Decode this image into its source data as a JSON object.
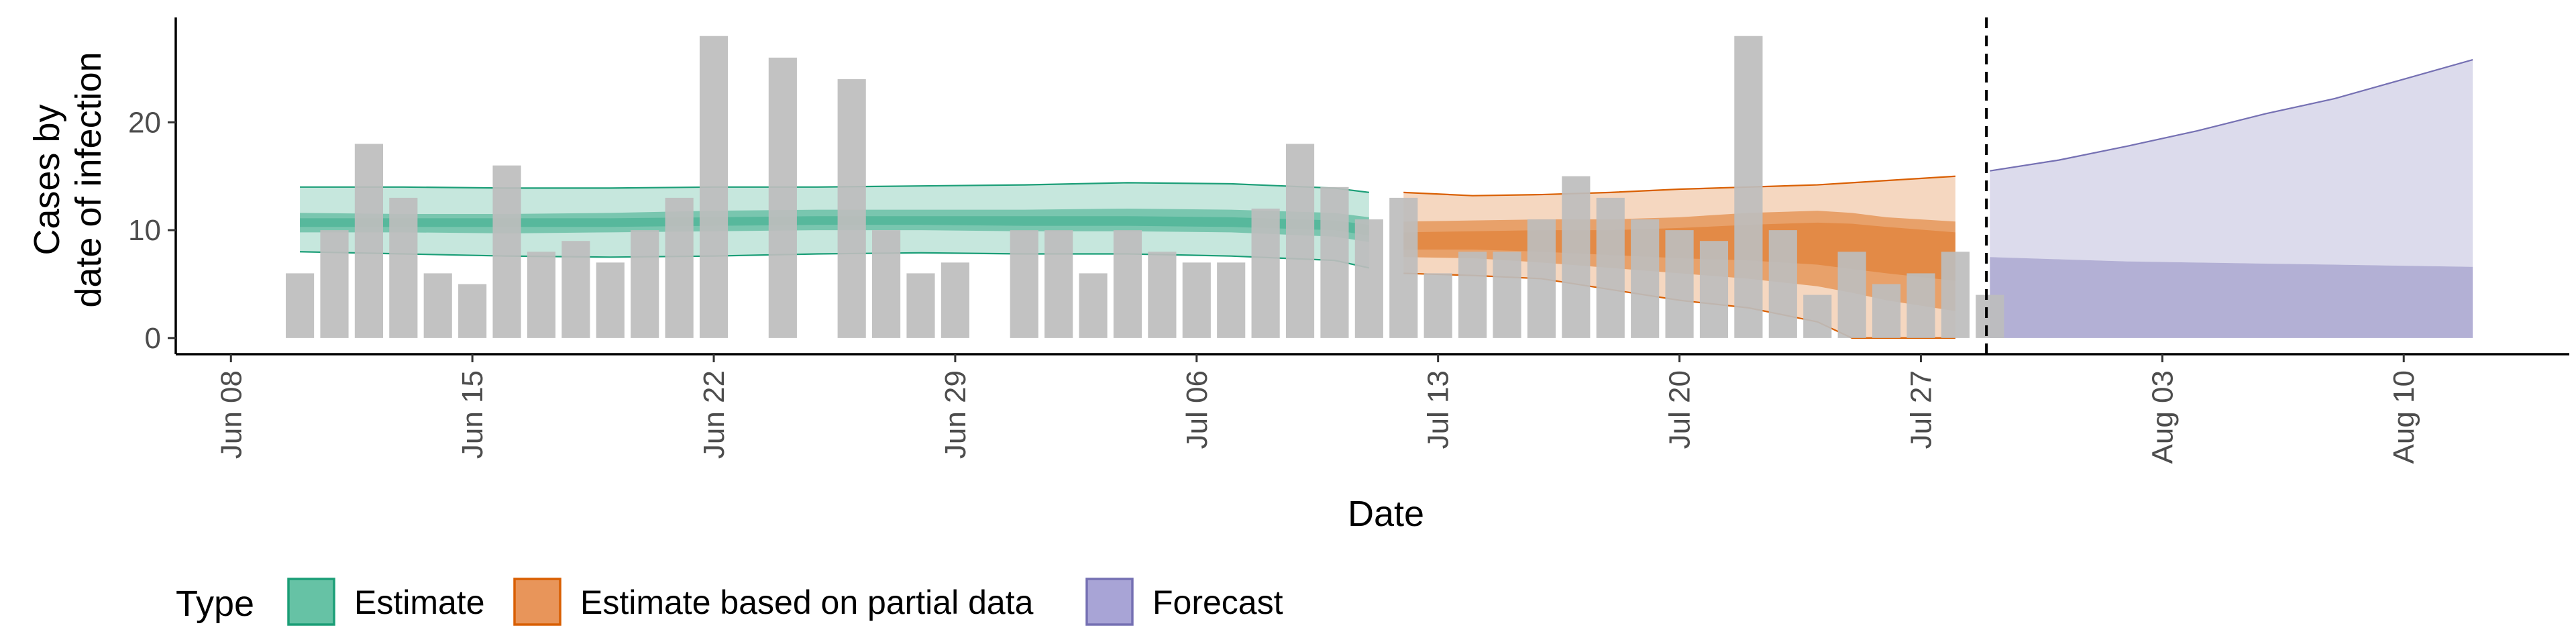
{
  "chart_data": {
    "type": "bar",
    "title": "",
    "xlabel": "Date",
    "ylabel_lines": [
      "Cases by",
      "date of infection"
    ],
    "x_ticks": [
      "Jun 08",
      "Jun 15",
      "Jun 22",
      "Jun 29",
      "Jul 06",
      "Jul 13",
      "Jul 20",
      "Jul 27",
      "Aug 03",
      "Aug 10"
    ],
    "x_tick_days": [
      0,
      7,
      14,
      21,
      28,
      35,
      42,
      49,
      56,
      63
    ],
    "x_day_zero": "Jun 08",
    "xlim_days": [
      -1.6,
      67.8
    ],
    "y_ticks": [
      0,
      10,
      20
    ],
    "ylim": [
      -1.5,
      29.6
    ],
    "forecast_date_day": 50.9,
    "legend": {
      "title": "Type",
      "position": "bottom",
      "entries": [
        {
          "label": "Estimate",
          "fill": "#66c2a5",
          "stroke": "#1b9e77"
        },
        {
          "label": "Estimate based on partial data",
          "fill": "#e8955a",
          "stroke": "#d95f02"
        },
        {
          "label": "Forecast",
          "fill": "#a8a4d6",
          "stroke": "#7570b3"
        }
      ]
    },
    "colors": {
      "bars": "#bdbdbd",
      "estimate": "#1b9e77",
      "partial": "#d95f02",
      "forecast": "#7570b3",
      "axis": "#000000"
    },
    "observed_cases": {
      "days": [
        2,
        3,
        4,
        5,
        6,
        7,
        8,
        9,
        10,
        11,
        12,
        13,
        14,
        15,
        16,
        17,
        18,
        19,
        20,
        21,
        22,
        23,
        24,
        25,
        26,
        27,
        28,
        29,
        30,
        31,
        32,
        33,
        34,
        35,
        36,
        37,
        38,
        39,
        40,
        41,
        42,
        43,
        44,
        45,
        46,
        47,
        48,
        49,
        50,
        51
      ],
      "values": [
        6,
        10,
        18,
        13,
        6,
        5,
        16,
        8,
        9,
        7,
        10,
        13,
        28,
        0,
        26,
        0,
        24,
        10,
        6,
        7,
        0,
        10,
        10,
        6,
        10,
        8,
        7,
        7,
        12,
        18,
        14,
        11,
        13,
        6,
        8,
        8,
        11,
        15,
        13,
        11,
        10,
        9,
        28,
        10,
        4,
        8,
        5,
        6,
        8,
        4
      ]
    },
    "series": [
      {
        "name": "Estimate",
        "x": [
          2,
          5,
          8,
          11,
          14,
          17,
          20,
          23,
          26,
          29,
          32,
          33
        ],
        "lower90": [
          8.0,
          7.8,
          7.6,
          7.5,
          7.6,
          7.8,
          7.9,
          7.8,
          7.8,
          7.6,
          7.2,
          6.5
        ],
        "upper90": [
          14.0,
          14.0,
          13.9,
          13.9,
          14.0,
          14.0,
          14.1,
          14.2,
          14.4,
          14.3,
          13.9,
          13.5
        ],
        "lower50": [
          9.8,
          9.8,
          9.7,
          9.8,
          9.9,
          10.0,
          10.0,
          9.9,
          9.9,
          9.8,
          9.4,
          8.9
        ],
        "upper50": [
          11.6,
          11.5,
          11.5,
          11.6,
          11.8,
          11.9,
          11.9,
          11.9,
          12.0,
          11.9,
          11.6,
          11.2
        ],
        "lower20": [
          10.3,
          10.3,
          10.3,
          10.3,
          10.4,
          10.5,
          10.5,
          10.4,
          10.4,
          10.3,
          10.0,
          9.5
        ],
        "upper20": [
          11.1,
          11.1,
          11.1,
          11.1,
          11.2,
          11.3,
          11.3,
          11.3,
          11.3,
          11.2,
          10.9,
          10.5
        ]
      },
      {
        "name": "Estimate based on partial data",
        "x": [
          34,
          36,
          38,
          40,
          42,
          44,
          46,
          47,
          48,
          50
        ],
        "lower90": [
          6.0,
          5.8,
          5.5,
          4.5,
          3.5,
          2.8,
          1.5,
          0.0,
          0.0,
          0.0
        ],
        "upper90": [
          13.5,
          13.2,
          13.3,
          13.5,
          13.8,
          14.0,
          14.2,
          14.4,
          14.6,
          15.0
        ],
        "lower50": [
          7.5,
          7.4,
          7.0,
          6.5,
          6.0,
          5.5,
          4.8,
          4.2,
          3.5,
          2.5
        ],
        "upper50": [
          10.8,
          10.9,
          11.0,
          11.0,
          11.2,
          11.6,
          11.8,
          11.6,
          11.2,
          10.8
        ],
        "lower20": [
          8.2,
          8.2,
          8.0,
          7.7,
          7.4,
          7.2,
          6.8,
          6.4,
          6.0,
          5.3
        ],
        "upper20": [
          9.8,
          9.9,
          10.0,
          10.0,
          10.2,
          10.5,
          10.7,
          10.6,
          10.3,
          9.8
        ]
      },
      {
        "name": "Forecast",
        "x": [
          51,
          53,
          55,
          57,
          59,
          61,
          63,
          65
        ],
        "lower90": [
          7.5,
          7.3,
          7.1,
          7.0,
          6.9,
          6.8,
          6.7,
          6.6
        ],
        "upper90": [
          15.5,
          16.5,
          17.8,
          19.2,
          20.8,
          22.2,
          24.0,
          25.8
        ]
      }
    ]
  }
}
